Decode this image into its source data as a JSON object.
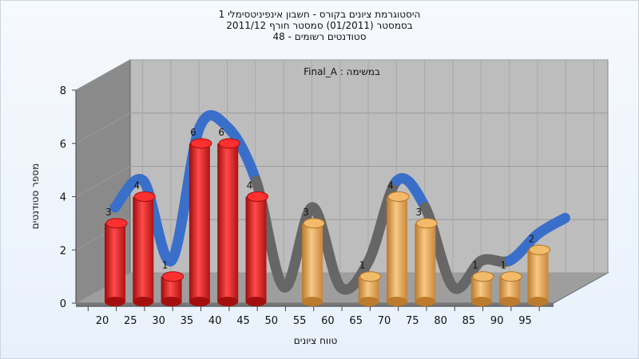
{
  "chart_data": {
    "type": "bar",
    "title_lines": [
      "היסטוגרמת ציונים בקורס - חשבון אינפיניטסימלי 1",
      "בסמסטר  (01/2011)  סמסטר חורף 2011/12",
      "סטודנטים רשומים - 48"
    ],
    "task_label": "במשימה : Final_A",
    "xlabel": "טווח ציונים",
    "ylabel": "מספר סטודנטים",
    "categories": [
      "20",
      "25",
      "30",
      "35",
      "40",
      "45",
      "50",
      "55",
      "60",
      "65",
      "70",
      "75",
      "80",
      "85",
      "90",
      "95"
    ],
    "values": [
      3,
      4,
      1,
      6,
      6,
      4,
      0,
      3,
      0,
      1,
      4,
      3,
      0,
      1,
      1,
      2
    ],
    "bar_colors": [
      "#e01a1a",
      "#e01a1a",
      "#e01a1a",
      "#e01a1a",
      "#e01a1a",
      "#e01a1a",
      "#e01a1a",
      "#e5a24a",
      "#e5a24a",
      "#e5a24a",
      "#e5a24a",
      "#e5a24a",
      "#e5a24a",
      "#e5a24a",
      "#e5a24a",
      "#e5a24a"
    ],
    "ylim": [
      0,
      8
    ],
    "yticks": [
      0,
      2,
      4,
      6,
      8
    ],
    "grid": true,
    "curve": {
      "segments_color": [
        "#3a6fc9",
        "#3a6fc9",
        "#3a6fc9",
        "#3a6fc9",
        "#3a6fc9",
        "#666666",
        "#666666",
        "#666666",
        "#666666",
        "#666666",
        "#3a6fc9",
        "#666666",
        "#666666",
        "#666666",
        "#3a6fc9",
        "#3a6fc9"
      ]
    },
    "colors": {
      "background": "#e8f1fb",
      "wall": "#bdbdbd",
      "left_wall": "#8a8a8a",
      "floor": "#9e9e9e",
      "red": "#e01a1a",
      "orange": "#e5a24a",
      "blue": "#3a6fc9",
      "gray": "#666666"
    }
  }
}
